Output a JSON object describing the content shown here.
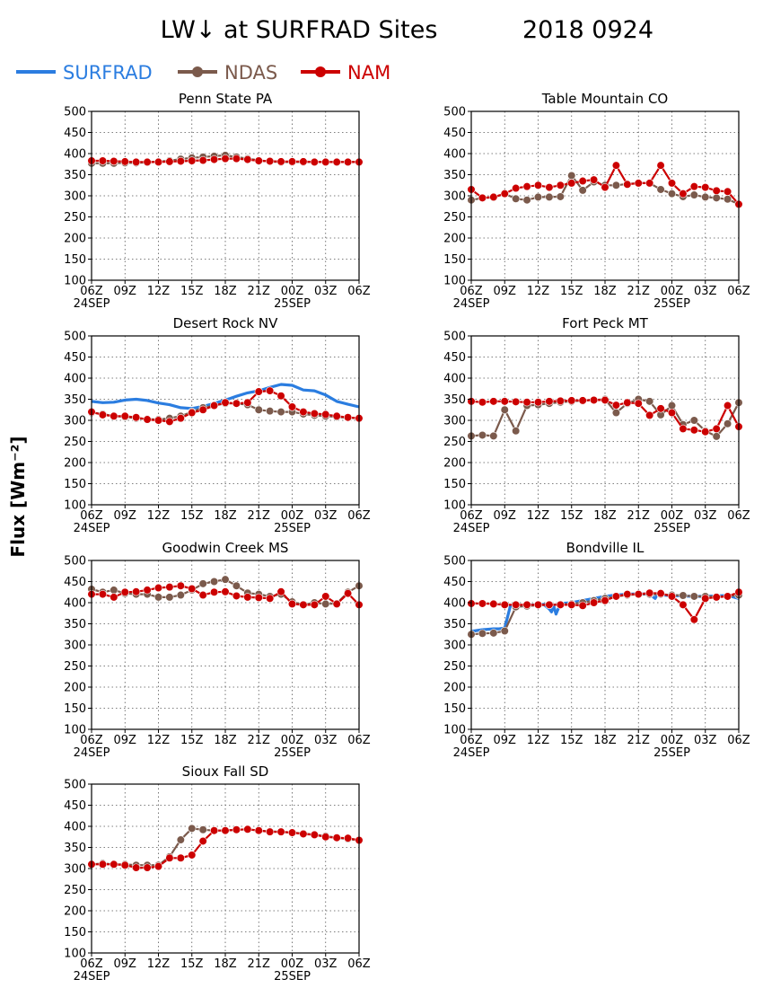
{
  "title": "LW↓ at SURFRAD Sites",
  "date_label": "2018 0924",
  "ylabel": "Flux [Wm⁻²]",
  "legend": [
    {
      "name": "SURFRAD",
      "color": "#2b7de0",
      "marker": "none"
    },
    {
      "name": "NDAS",
      "color": "#7b5a4c",
      "marker": "circle"
    },
    {
      "name": "NAM",
      "color": "#cc0000",
      "marker": "circle"
    }
  ],
  "axes": {
    "ylim": [
      100,
      500
    ],
    "yticks": [
      100,
      150,
      200,
      250,
      300,
      350,
      400,
      450,
      500
    ],
    "xticks": [
      "06Z",
      "09Z",
      "12Z",
      "15Z",
      "18Z",
      "21Z",
      "00Z",
      "03Z",
      "06Z"
    ],
    "date_ticks": [
      {
        "label": "24SEP",
        "at": "06Z"
      },
      {
        "label": "25SEP",
        "at": "00Z"
      }
    ],
    "x_range_hours": [
      0,
      24
    ],
    "grid": true
  },
  "chart_data": [
    {
      "type": "line",
      "title": "Penn State PA",
      "series": [
        {
          "name": "SURFRAD",
          "x": [],
          "values": []
        },
        {
          "name": "NDAS",
          "x": [
            0,
            1,
            2,
            3,
            4,
            5,
            6,
            7,
            8,
            9,
            10,
            11,
            12,
            13,
            14,
            15,
            16,
            17,
            18,
            19,
            20,
            21,
            22,
            23,
            24
          ],
          "values": [
            377,
            377,
            377,
            378,
            378,
            379,
            381,
            383,
            387,
            390,
            392,
            394,
            396,
            392,
            388,
            384,
            381,
            380,
            380,
            380,
            380,
            380,
            380,
            380,
            380
          ]
        },
        {
          "name": "NAM",
          "x": [
            0,
            1,
            2,
            3,
            4,
            5,
            6,
            7,
            8,
            9,
            10,
            11,
            12,
            13,
            14,
            15,
            16,
            17,
            18,
            19,
            20,
            21,
            22,
            23,
            24
          ],
          "values": [
            383,
            383,
            382,
            381,
            380,
            380,
            380,
            381,
            382,
            383,
            384,
            386,
            388,
            388,
            386,
            383,
            382,
            381,
            381,
            381,
            380,
            380,
            380,
            380,
            380
          ]
        }
      ]
    },
    {
      "type": "line",
      "title": "Table Mountain CO",
      "series": [
        {
          "name": "SURFRAD",
          "x": [],
          "values": []
        },
        {
          "name": "NDAS",
          "x": [
            0,
            1,
            2,
            3,
            4,
            5,
            6,
            7,
            8,
            9,
            10,
            11,
            12,
            13,
            14,
            15,
            16,
            17,
            18,
            19,
            20,
            21,
            22,
            23,
            24
          ],
          "values": [
            290,
            295,
            296,
            305,
            293,
            290,
            297,
            297,
            298,
            348,
            313,
            333,
            325,
            325,
            328,
            330,
            330,
            315,
            305,
            298,
            302,
            297,
            295,
            292,
            280
          ]
        },
        {
          "name": "NAM",
          "x": [
            0,
            1,
            2,
            3,
            4,
            5,
            6,
            7,
            8,
            9,
            10,
            11,
            12,
            13,
            14,
            15,
            16,
            17,
            18,
            19,
            20,
            21,
            22,
            23,
            24
          ],
          "values": [
            315,
            295,
            297,
            305,
            318,
            322,
            325,
            320,
            325,
            330,
            335,
            338,
            320,
            372,
            327,
            330,
            330,
            372,
            330,
            305,
            322,
            320,
            312,
            310,
            280
          ]
        }
      ]
    },
    {
      "type": "line",
      "title": "Desert Rock NV",
      "series": [
        {
          "name": "SURFRAD",
          "x": [
            0,
            1,
            2,
            3,
            4,
            5,
            6,
            7,
            8,
            9,
            10,
            11,
            12,
            13,
            14,
            15,
            16,
            17,
            18,
            19,
            20,
            21,
            22,
            23,
            24
          ],
          "values": [
            345,
            342,
            343,
            348,
            350,
            347,
            341,
            337,
            330,
            328,
            333,
            340,
            348,
            357,
            365,
            370,
            378,
            385,
            383,
            372,
            370,
            360,
            345,
            338,
            332
          ]
        },
        {
          "name": "NDAS",
          "x": [
            0,
            1,
            2,
            3,
            4,
            5,
            6,
            7,
            8,
            9,
            10,
            11,
            12,
            13,
            14,
            15,
            16,
            17,
            18,
            19,
            20,
            21,
            22,
            23,
            24
          ],
          "values": [
            318,
            315,
            310,
            308,
            305,
            303,
            302,
            305,
            310,
            320,
            330,
            335,
            340,
            340,
            337,
            325,
            322,
            320,
            320,
            315,
            312,
            310,
            308,
            306,
            305
          ]
        },
        {
          "name": "NAM",
          "x": [
            0,
            1,
            2,
            3,
            4,
            5,
            6,
            7,
            8,
            9,
            10,
            11,
            12,
            13,
            14,
            15,
            16,
            17,
            18,
            19,
            20,
            21,
            22,
            23,
            24
          ],
          "values": [
            320,
            313,
            310,
            310,
            307,
            302,
            300,
            297,
            305,
            318,
            325,
            335,
            342,
            340,
            342,
            368,
            370,
            358,
            332,
            320,
            316,
            314,
            310,
            307,
            305
          ]
        }
      ]
    },
    {
      "type": "line",
      "title": "Fort Peck MT",
      "series": [
        {
          "name": "SURFRAD",
          "x": [],
          "values": []
        },
        {
          "name": "NDAS",
          "x": [
            0,
            1,
            2,
            3,
            4,
            5,
            6,
            7,
            8,
            9,
            10,
            11,
            12,
            13,
            14,
            15,
            16,
            17,
            18,
            19,
            20,
            21,
            22,
            23,
            24
          ],
          "values": [
            263,
            265,
            263,
            325,
            275,
            335,
            337,
            340,
            343,
            345,
            347,
            348,
            350,
            318,
            340,
            350,
            345,
            313,
            335,
            290,
            300,
            275,
            262,
            292,
            342
          ]
        },
        {
          "name": "NAM",
          "x": [
            0,
            1,
            2,
            3,
            4,
            5,
            6,
            7,
            8,
            9,
            10,
            11,
            12,
            13,
            14,
            15,
            16,
            17,
            18,
            19,
            20,
            21,
            22,
            23,
            24
          ],
          "values": [
            345,
            343,
            345,
            345,
            344,
            343,
            343,
            345,
            346,
            347,
            347,
            348,
            348,
            336,
            342,
            340,
            312,
            328,
            318,
            280,
            277,
            273,
            280,
            335,
            285
          ]
        }
      ]
    },
    {
      "type": "line",
      "title": "Goodwin Creek MS",
      "series": [
        {
          "name": "SURFRAD",
          "x": [],
          "values": []
        },
        {
          "name": "NDAS",
          "x": [
            0,
            1,
            2,
            3,
            4,
            5,
            6,
            7,
            8,
            9,
            10,
            11,
            12,
            13,
            14,
            15,
            16,
            17,
            18,
            19,
            20,
            21,
            22,
            23,
            24
          ],
          "values": [
            432,
            425,
            430,
            422,
            420,
            420,
            413,
            413,
            418,
            430,
            445,
            450,
            455,
            440,
            423,
            420,
            415,
            420,
            402,
            395,
            400,
            397,
            398,
            425,
            440
          ]
        },
        {
          "name": "NAM",
          "x": [
            0,
            1,
            2,
            3,
            4,
            5,
            6,
            7,
            8,
            9,
            10,
            11,
            12,
            13,
            14,
            15,
            16,
            17,
            18,
            19,
            20,
            21,
            22,
            23,
            24
          ],
          "values": [
            420,
            420,
            413,
            425,
            426,
            430,
            435,
            437,
            440,
            433,
            418,
            425,
            426,
            416,
            413,
            412,
            410,
            426,
            397,
            395,
            395,
            415,
            397,
            422,
            395
          ]
        }
      ]
    },
    {
      "type": "line",
      "title": "Bondville IL",
      "series": [
        {
          "name": "SURFRAD",
          "x": [
            0,
            0.5,
            1,
            1.5,
            2,
            2.5,
            3,
            3.5,
            4,
            5,
            6,
            6.5,
            7,
            7.2,
            7.4,
            7.6,
            8,
            9,
            10,
            11,
            12,
            13,
            14,
            15,
            16,
            16.5,
            16.8,
            17,
            18,
            19,
            20,
            21,
            22,
            23,
            24
          ],
          "values": [
            332,
            334,
            336,
            337,
            338,
            338,
            340,
            392,
            393,
            394,
            395,
            396,
            385,
            378,
            392,
            373,
            398,
            400,
            405,
            410,
            415,
            418,
            420,
            421,
            420,
            410,
            425,
            418,
            417,
            416,
            415,
            415,
            416,
            417,
            410
          ]
        },
        {
          "name": "NDAS",
          "x": [
            0,
            1,
            2,
            3,
            4,
            5,
            6,
            7,
            8,
            9,
            10,
            11,
            12,
            13,
            14,
            15,
            16,
            17,
            18,
            19,
            20,
            21,
            22,
            23,
            24
          ],
          "values": [
            325,
            327,
            328,
            333,
            390,
            392,
            394,
            395,
            396,
            397,
            400,
            405,
            410,
            415,
            418,
            420,
            420,
            420,
            418,
            417,
            415,
            415,
            414,
            415,
            418
          ]
        },
        {
          "name": "NAM",
          "x": [
            0,
            1,
            2,
            3,
            4,
            5,
            6,
            7,
            8,
            9,
            10,
            11,
            12,
            13,
            14,
            15,
            16,
            17,
            18,
            19,
            20,
            21,
            22,
            23,
            24
          ],
          "values": [
            398,
            398,
            397,
            395,
            395,
            395,
            395,
            395,
            395,
            395,
            393,
            400,
            405,
            415,
            420,
            420,
            423,
            422,
            415,
            395,
            360,
            410,
            413,
            415,
            425
          ]
        }
      ]
    },
    {
      "type": "line",
      "title": "Sioux Fall SD",
      "series": [
        {
          "name": "SURFRAD",
          "x": [],
          "values": []
        },
        {
          "name": "NDAS",
          "x": [
            0,
            1,
            2,
            3,
            4,
            5,
            6,
            7,
            8,
            9,
            10,
            11,
            12,
            13,
            14,
            15,
            16,
            17,
            18,
            19,
            20,
            21,
            22,
            23,
            24
          ],
          "values": [
            310,
            312,
            310,
            310,
            308,
            308,
            308,
            328,
            368,
            395,
            392,
            390,
            390,
            392,
            393,
            390,
            388,
            387,
            385,
            383,
            380,
            377,
            373,
            370,
            367
          ]
        },
        {
          "name": "NAM",
          "x": [
            0,
            1,
            2,
            3,
            4,
            5,
            6,
            7,
            8,
            9,
            10,
            11,
            12,
            13,
            14,
            15,
            16,
            17,
            18,
            19,
            20,
            21,
            22,
            23,
            24
          ],
          "values": [
            310,
            310,
            310,
            308,
            302,
            302,
            305,
            325,
            325,
            332,
            365,
            390,
            390,
            392,
            393,
            390,
            387,
            387,
            385,
            382,
            380,
            375,
            373,
            372,
            367
          ]
        }
      ]
    }
  ]
}
